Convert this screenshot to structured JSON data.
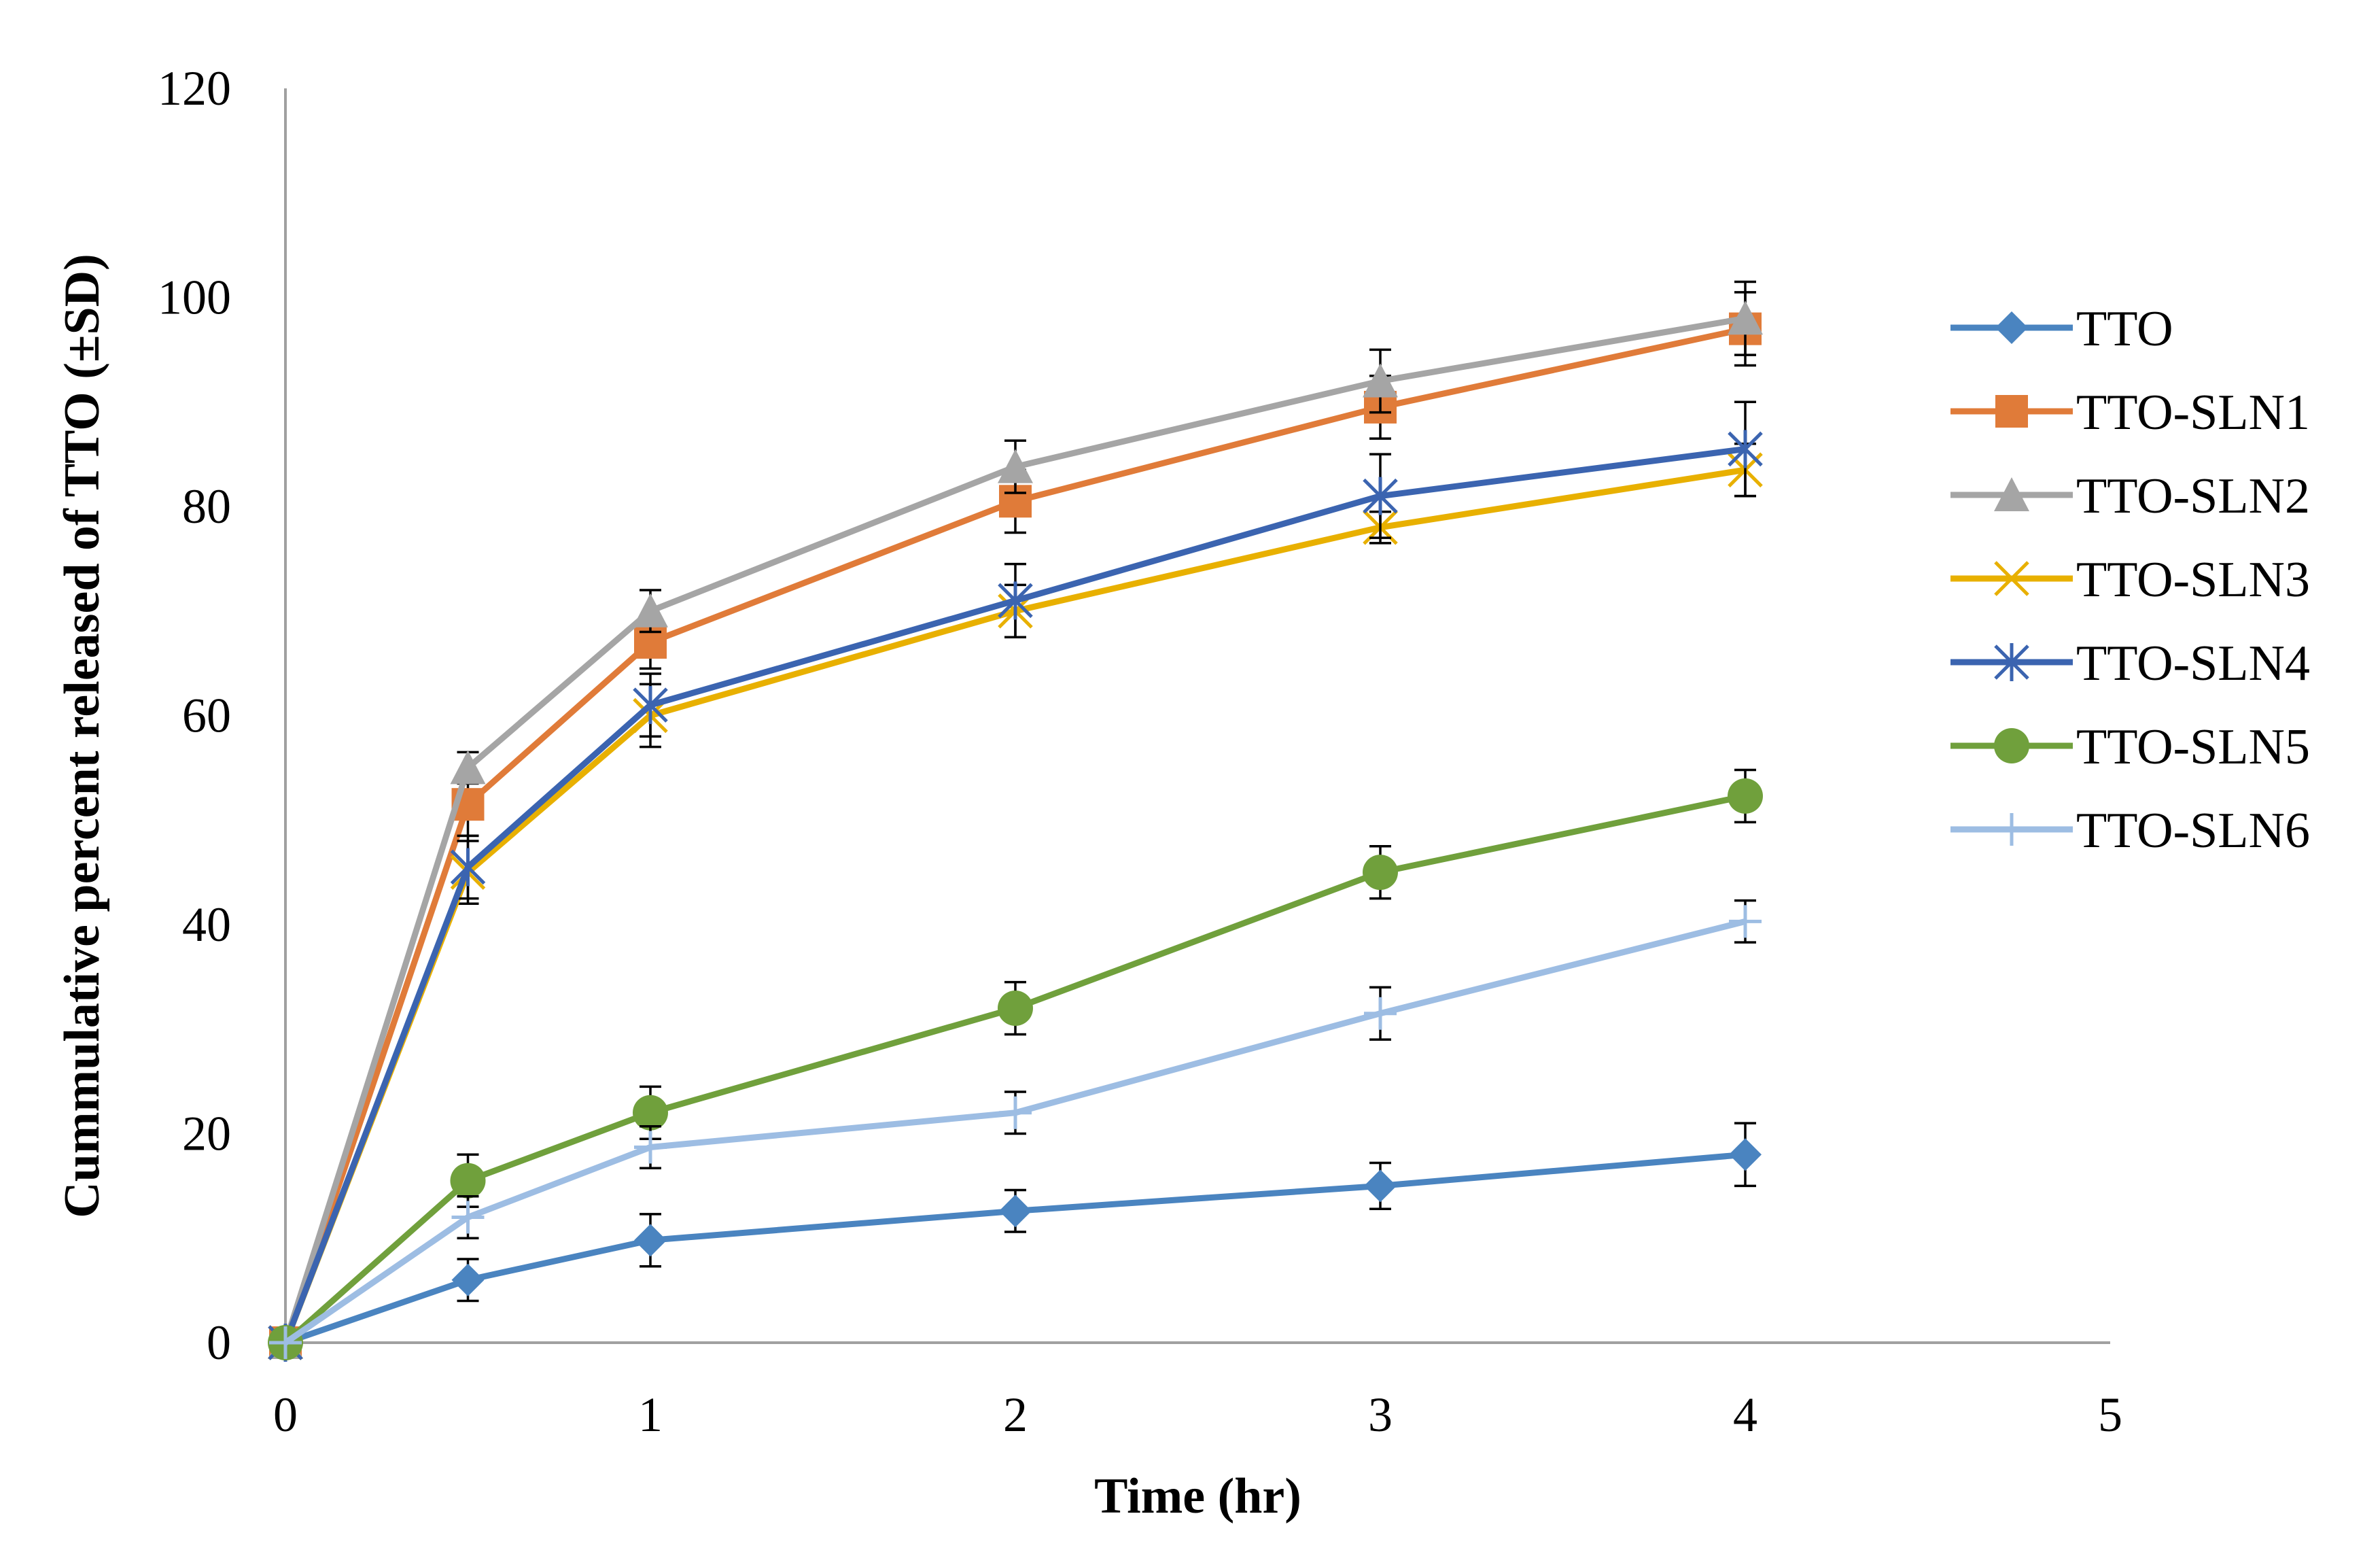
{
  "chart_data": {
    "type": "line",
    "title": "",
    "xlabel": "Time (hr)",
    "ylabel": "Cummulative percent released of TTO (±SD)",
    "xlim": [
      0,
      5
    ],
    "ylim": [
      0,
      120
    ],
    "xticks": [
      "0",
      "1",
      "2",
      "3",
      "4",
      "5"
    ],
    "yticks": [
      "0",
      "20",
      "40",
      "60",
      "80",
      "100",
      "120"
    ],
    "xtick_values": [
      0,
      1,
      2,
      3,
      4,
      5
    ],
    "ytick_values": [
      0,
      20,
      40,
      60,
      80,
      100,
      120
    ],
    "grid": false,
    "legend_position": "right",
    "x": [
      0,
      0.5,
      1,
      2,
      3,
      4
    ],
    "series": [
      {
        "name": "TTO",
        "color": "#4a84c0",
        "marker": "diamond",
        "values": [
          0,
          6,
          9.8,
          12.6,
          15,
          18
        ],
        "errors": [
          0,
          2,
          2.5,
          2,
          2.2,
          3
        ]
      },
      {
        "name": "TTO-SLN1",
        "color": "#e07b39",
        "marker": "square",
        "values": [
          0,
          51.5,
          67,
          80.5,
          89.5,
          97
        ],
        "errors": [
          0,
          3,
          2.5,
          3,
          3,
          3.5
        ]
      },
      {
        "name": "TTO-SLN2",
        "color": "#a5a5a5",
        "marker": "triangle",
        "values": [
          0,
          55,
          70,
          83.8,
          92,
          98
        ],
        "errors": [
          0,
          1.5,
          2,
          2.5,
          3,
          3.5
        ]
      },
      {
        "name": "TTO-SLN3",
        "color": "#e8b000",
        "marker": "x",
        "values": [
          0,
          45,
          60,
          70,
          78,
          83.5
        ],
        "errors": [
          0,
          3,
          3,
          2.5,
          1.5,
          2.5
        ]
      },
      {
        "name": "TTO-SLN4",
        "color": "#3b64b0",
        "marker": "star",
        "values": [
          0,
          45.5,
          61,
          71,
          81,
          85.5
        ],
        "errors": [
          0,
          3,
          3,
          3.5,
          4,
          4.5
        ]
      },
      {
        "name": "TTO-SLN5",
        "color": "#70a03c",
        "marker": "circle",
        "values": [
          0,
          15.5,
          22,
          32,
          45,
          52.3
        ],
        "errors": [
          0,
          2.5,
          2.5,
          2.5,
          2.5,
          2.5
        ]
      },
      {
        "name": "TTO-SLN6",
        "color": "#9dbde3",
        "marker": "plus",
        "values": [
          0,
          12,
          18.7,
          22,
          31.5,
          40.3
        ],
        "errors": [
          0,
          2,
          2,
          2,
          2.5,
          2
        ]
      }
    ]
  }
}
